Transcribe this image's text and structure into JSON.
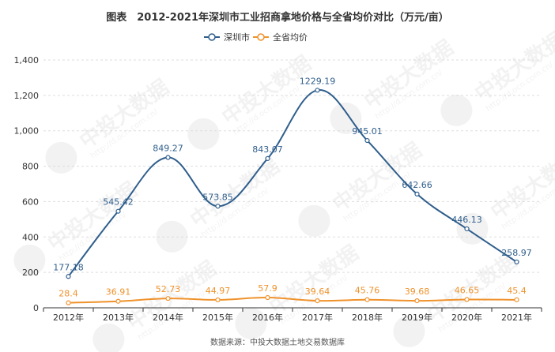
{
  "chart_data": {
    "type": "line",
    "title": "图表　2012-2021年深圳市工业招商拿地价格与全省均价对比（万元/亩）",
    "categories": [
      "2012年",
      "2013年",
      "2014年",
      "2015年",
      "2016年",
      "2017年",
      "2018年",
      "2019年",
      "2020年",
      "2021年"
    ],
    "series": [
      {
        "name": "深圳市",
        "color": "#2f5e8c",
        "values": [
          177.18,
          545.42,
          849.27,
          573.85,
          843.07,
          1229.19,
          945.01,
          642.66,
          446.13,
          258.97
        ],
        "labels": [
          "177.18",
          "545.42",
          "849.27",
          "573.85",
          "843.07",
          "1229.19",
          "945.01",
          "642.66",
          "446.13",
          "258.97"
        ]
      },
      {
        "name": "全省均价",
        "color": "#f0922b",
        "values": [
          28.4,
          36.91,
          52.73,
          44.97,
          57.9,
          39.64,
          45.76,
          39.68,
          46.65,
          45.4
        ],
        "labels": [
          "28.4",
          "36.91",
          "52.73",
          "44.97",
          "57.9",
          "39.64",
          "45.76",
          "39.68",
          "46.65",
          "45.4"
        ]
      }
    ],
    "ylim": [
      0,
      1400
    ],
    "yticks": [
      0,
      200,
      400,
      600,
      800,
      1000,
      1200,
      1400
    ],
    "ytick_labels": [
      "0",
      "200",
      "400",
      "600",
      "800",
      "1,000",
      "1,200",
      "1,400"
    ],
    "grid": "horizontal dashed",
    "legend_position": "top-center",
    "source": "数据来源：中投大数据土地交易数据库"
  },
  "watermark": {
    "text": "中投大数据",
    "url": "http://d.ocn.com.cn/"
  }
}
